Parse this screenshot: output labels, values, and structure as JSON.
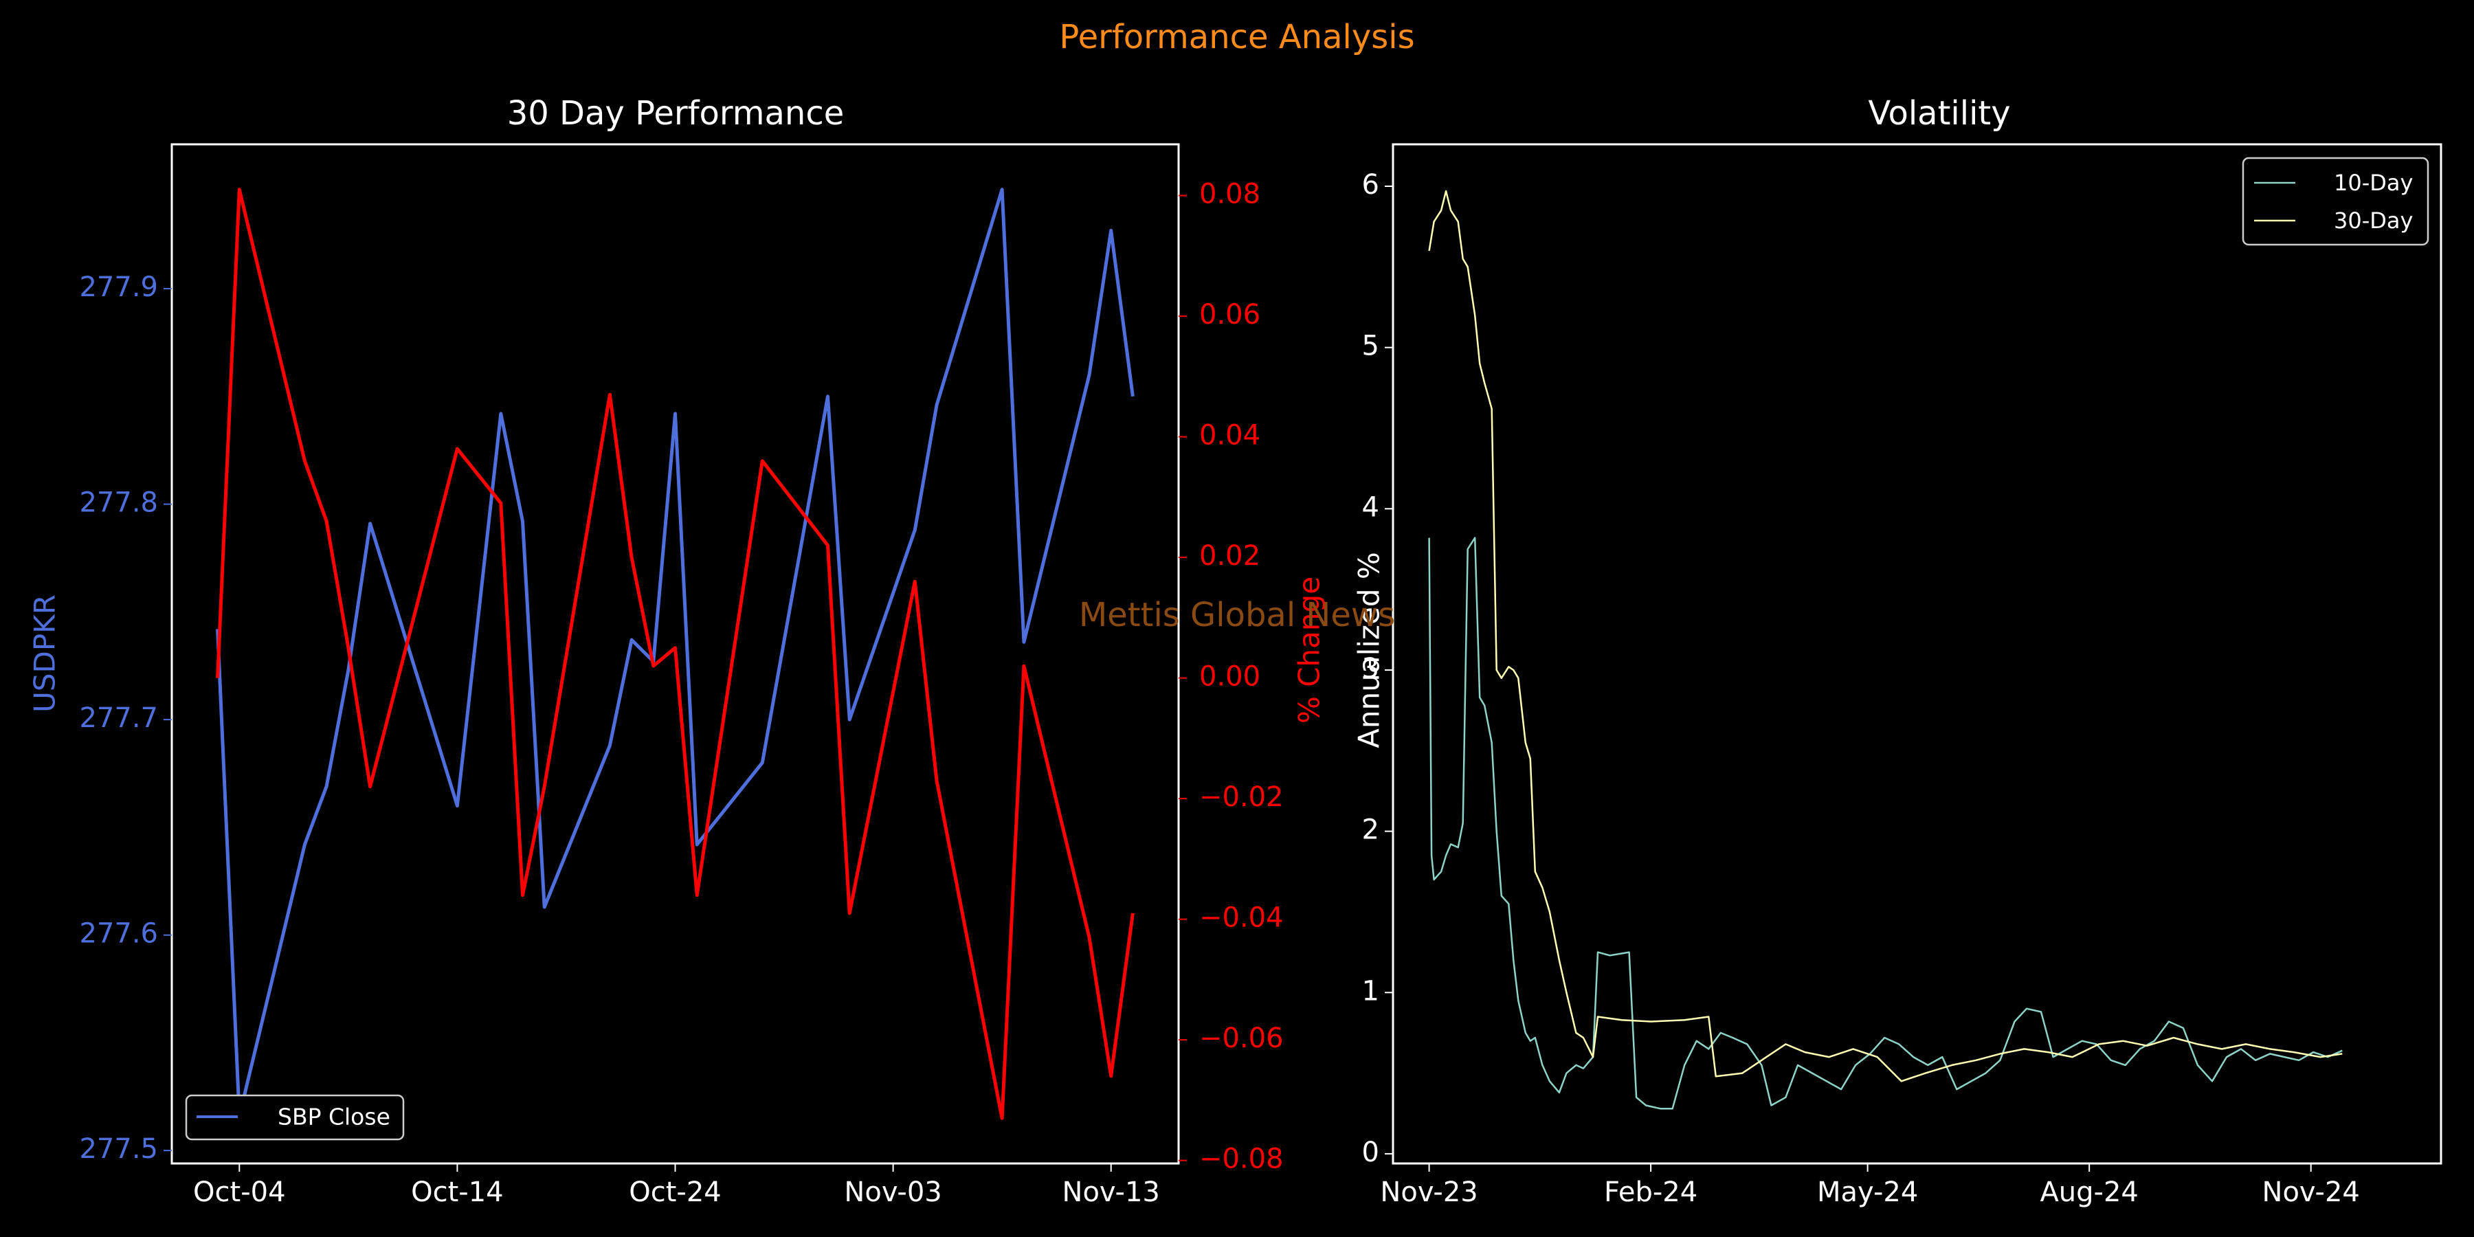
{
  "figure": {
    "suptitle": "Performance Analysis",
    "watermark": "Mettis Global News",
    "colors": {
      "background": "#000000",
      "suptitle": "#ff8c1a",
      "watermark": "#8b4a12",
      "axes": "#ffffff",
      "price": "#4f6fdc",
      "pct_change": "#ff0000",
      "vol10": "#8dd3c7",
      "vol30": "#ffffb3"
    }
  },
  "chart_data": [
    {
      "type": "line",
      "title": "30 Day Performance",
      "xlabel": "",
      "ylabel": "USDPKR",
      "ylabel_right": "% Change",
      "x_tick_labels": [
        "Oct-04",
        "Oct-14",
        "Oct-24",
        "Nov-03",
        "Nov-13"
      ],
      "y_ticks": [
        "277.5",
        "277.6",
        "277.7",
        "277.8",
        "277.9"
      ],
      "y_ticks_right": [
        "−0.08",
        "−0.06",
        "−0.04",
        "−0.02",
        "0.00",
        "0.02",
        "0.04",
        "0.06",
        "0.08"
      ],
      "ylim": [
        277.494,
        277.967
      ],
      "ylim_right": [
        -0.0805,
        0.0885
      ],
      "legend": {
        "position": "lower-left",
        "entries": [
          "SBP Close"
        ]
      },
      "dates": [
        "2024-10-03",
        "2024-10-04",
        "2024-10-07",
        "2024-10-08",
        "2024-10-09",
        "2024-10-10",
        "2024-10-14",
        "2024-10-16",
        "2024-10-17",
        "2024-10-18",
        "2024-10-21",
        "2024-10-22",
        "2024-10-23",
        "2024-10-24",
        "2024-10-25",
        "2024-10-28",
        "2024-10-31",
        "2024-11-01",
        "2024-11-04",
        "2024-11-05",
        "2024-11-08",
        "2024-11-09",
        "2024-11-12",
        "2024-11-13",
        "2024-11-14"
      ],
      "series": [
        {
          "name": "SBP Close",
          "axis": "left",
          "values": [
            277.742,
            277.516,
            277.642,
            277.669,
            277.723,
            277.791,
            277.66,
            277.842,
            277.792,
            277.613,
            277.688,
            277.737,
            277.727,
            277.842,
            277.642,
            277.68,
            277.85,
            277.7,
            277.788,
            277.846,
            277.946,
            277.736,
            277.86,
            277.927,
            277.85
          ]
        },
        {
          "axis": "right",
          "values": [
            0.0,
            0.081,
            0.036,
            0.026,
            0.005,
            -0.018,
            0.038,
            0.029,
            -0.036,
            -0.018,
            0.047,
            0.02,
            0.002,
            0.005,
            -0.036,
            0.036,
            0.022,
            -0.039,
            0.016,
            -0.017,
            -0.073,
            0.002,
            -0.043,
            -0.066,
            -0.039
          ]
        }
      ]
    },
    {
      "type": "line",
      "title": "Volatility",
      "xlabel": "",
      "ylabel": "Annualized %",
      "x_tick_labels": [
        "Nov-23",
        "Feb-24",
        "May-24",
        "Aug-24",
        "Nov-24"
      ],
      "y_ticks": [
        "0",
        "1",
        "2",
        "3",
        "4",
        "5",
        "6"
      ],
      "ylim": [
        -0.06,
        6.26
      ],
      "xlim": [
        "2023-10-17",
        "2024-12-25"
      ],
      "legend": {
        "position": "top-right",
        "entries": [
          "10-Day",
          "30-Day"
        ]
      },
      "series": [
        {
          "name": "10-Day",
          "points": [
            [
              "2023-11-01",
              3.82
            ],
            [
              "2023-11-02",
              1.85
            ],
            [
              "2023-11-03",
              1.7
            ],
            [
              "2023-11-06",
              1.75
            ],
            [
              "2023-11-08",
              1.85
            ],
            [
              "2023-11-10",
              1.92
            ],
            [
              "2023-11-13",
              1.9
            ],
            [
              "2023-11-15",
              2.05
            ],
            [
              "2023-11-17",
              3.75
            ],
            [
              "2023-11-20",
              3.82
            ],
            [
              "2023-11-22",
              2.83
            ],
            [
              "2023-11-24",
              2.78
            ],
            [
              "2023-11-27",
              2.55
            ],
            [
              "2023-11-29",
              2.0
            ],
            [
              "2023-12-01",
              1.6
            ],
            [
              "2023-12-04",
              1.55
            ],
            [
              "2023-12-06",
              1.2
            ],
            [
              "2023-12-08",
              0.95
            ],
            [
              "2023-12-11",
              0.75
            ],
            [
              "2023-12-13",
              0.7
            ],
            [
              "2023-12-15",
              0.72
            ],
            [
              "2023-12-18",
              0.55
            ],
            [
              "2023-12-21",
              0.45
            ],
            [
              "2023-12-25",
              0.38
            ],
            [
              "2023-12-28",
              0.5
            ],
            [
              "2024-01-01",
              0.55
            ],
            [
              "2024-01-04",
              0.53
            ],
            [
              "2024-01-08",
              0.6
            ],
            [
              "2024-01-10",
              1.25
            ],
            [
              "2024-01-15",
              1.23
            ],
            [
              "2024-01-19",
              1.24
            ],
            [
              "2024-01-23",
              1.25
            ],
            [
              "2024-01-26",
              0.35
            ],
            [
              "2024-01-30",
              0.3
            ],
            [
              "2024-02-05",
              0.28
            ],
            [
              "2024-02-10",
              0.28
            ],
            [
              "2024-02-15",
              0.55
            ],
            [
              "2024-02-20",
              0.7
            ],
            [
              "2024-02-25",
              0.65
            ],
            [
              "2024-03-01",
              0.75
            ],
            [
              "2024-03-06",
              0.72
            ],
            [
              "2024-03-12",
              0.68
            ],
            [
              "2024-03-18",
              0.55
            ],
            [
              "2024-03-22",
              0.3
            ],
            [
              "2024-03-28",
              0.35
            ],
            [
              "2024-04-02",
              0.55
            ],
            [
              "2024-04-08",
              0.5
            ],
            [
              "2024-04-14",
              0.45
            ],
            [
              "2024-04-20",
              0.4
            ],
            [
              "2024-04-26",
              0.55
            ],
            [
              "2024-05-02",
              0.62
            ],
            [
              "2024-05-08",
              0.72
            ],
            [
              "2024-05-14",
              0.68
            ],
            [
              "2024-05-20",
              0.6
            ],
            [
              "2024-05-26",
              0.55
            ],
            [
              "2024-06-01",
              0.6
            ],
            [
              "2024-06-07",
              0.4
            ],
            [
              "2024-06-13",
              0.45
            ],
            [
              "2024-06-19",
              0.5
            ],
            [
              "2024-06-25",
              0.58
            ],
            [
              "2024-07-01",
              0.82
            ],
            [
              "2024-07-06",
              0.9
            ],
            [
              "2024-07-12",
              0.88
            ],
            [
              "2024-07-17",
              0.6
            ],
            [
              "2024-07-23",
              0.65
            ],
            [
              "2024-07-29",
              0.7
            ],
            [
              "2024-08-04",
              0.68
            ],
            [
              "2024-08-10",
              0.58
            ],
            [
              "2024-08-16",
              0.55
            ],
            [
              "2024-08-22",
              0.65
            ],
            [
              "2024-08-28",
              0.7
            ],
            [
              "2024-09-03",
              0.82
            ],
            [
              "2024-09-09",
              0.78
            ],
            [
              "2024-09-15",
              0.55
            ],
            [
              "2024-09-21",
              0.45
            ],
            [
              "2024-09-27",
              0.6
            ],
            [
              "2024-10-03",
              0.65
            ],
            [
              "2024-10-09",
              0.58
            ],
            [
              "2024-10-15",
              0.62
            ],
            [
              "2024-10-21",
              0.6
            ],
            [
              "2024-10-27",
              0.58
            ],
            [
              "2024-11-02",
              0.63
            ],
            [
              "2024-11-08",
              0.6
            ],
            [
              "2024-11-14",
              0.64
            ]
          ]
        },
        {
          "name": "30-Day",
          "points": [
            [
              "2023-11-01",
              5.6
            ],
            [
              "2023-11-03",
              5.78
            ],
            [
              "2023-11-06",
              5.85
            ],
            [
              "2023-11-08",
              5.97
            ],
            [
              "2023-11-10",
              5.85
            ],
            [
              "2023-11-13",
              5.78
            ],
            [
              "2023-11-15",
              5.55
            ],
            [
              "2023-11-17",
              5.5
            ],
            [
              "2023-11-20",
              5.2
            ],
            [
              "2023-11-22",
              4.9
            ],
            [
              "2023-11-24",
              4.78
            ],
            [
              "2023-11-27",
              4.62
            ],
            [
              "2023-11-29",
              3.0
            ],
            [
              "2023-12-01",
              2.95
            ],
            [
              "2023-12-04",
              3.02
            ],
            [
              "2023-12-06",
              3.0
            ],
            [
              "2023-12-08",
              2.95
            ],
            [
              "2023-12-11",
              2.55
            ],
            [
              "2023-12-13",
              2.45
            ],
            [
              "2023-12-15",
              1.75
            ],
            [
              "2023-12-18",
              1.65
            ],
            [
              "2023-12-21",
              1.5
            ],
            [
              "2023-12-25",
              1.2
            ],
            [
              "2023-12-28",
              1.0
            ],
            [
              "2024-01-01",
              0.75
            ],
            [
              "2024-01-04",
              0.72
            ],
            [
              "2024-01-08",
              0.6
            ],
            [
              "2024-01-10",
              0.85
            ],
            [
              "2024-01-20",
              0.83
            ],
            [
              "2024-02-01",
              0.82
            ],
            [
              "2024-02-15",
              0.83
            ],
            [
              "2024-02-25",
              0.85
            ],
            [
              "2024-02-28",
              0.48
            ],
            [
              "2024-03-10",
              0.5
            ],
            [
              "2024-03-20",
              0.6
            ],
            [
              "2024-03-28",
              0.68
            ],
            [
              "2024-04-05",
              0.63
            ],
            [
              "2024-04-15",
              0.6
            ],
            [
              "2024-04-25",
              0.65
            ],
            [
              "2024-05-05",
              0.6
            ],
            [
              "2024-05-15",
              0.45
            ],
            [
              "2024-05-25",
              0.5
            ],
            [
              "2024-06-05",
              0.55
            ],
            [
              "2024-06-15",
              0.58
            ],
            [
              "2024-06-25",
              0.62
            ],
            [
              "2024-07-05",
              0.65
            ],
            [
              "2024-07-15",
              0.63
            ],
            [
              "2024-07-25",
              0.6
            ],
            [
              "2024-08-05",
              0.68
            ],
            [
              "2024-08-15",
              0.7
            ],
            [
              "2024-08-25",
              0.67
            ],
            [
              "2024-09-05",
              0.72
            ],
            [
              "2024-09-15",
              0.68
            ],
            [
              "2024-09-25",
              0.65
            ],
            [
              "2024-10-05",
              0.68
            ],
            [
              "2024-10-15",
              0.65
            ],
            [
              "2024-10-25",
              0.63
            ],
            [
              "2024-11-05",
              0.6
            ],
            [
              "2024-11-14",
              0.62
            ]
          ]
        }
      ]
    }
  ]
}
